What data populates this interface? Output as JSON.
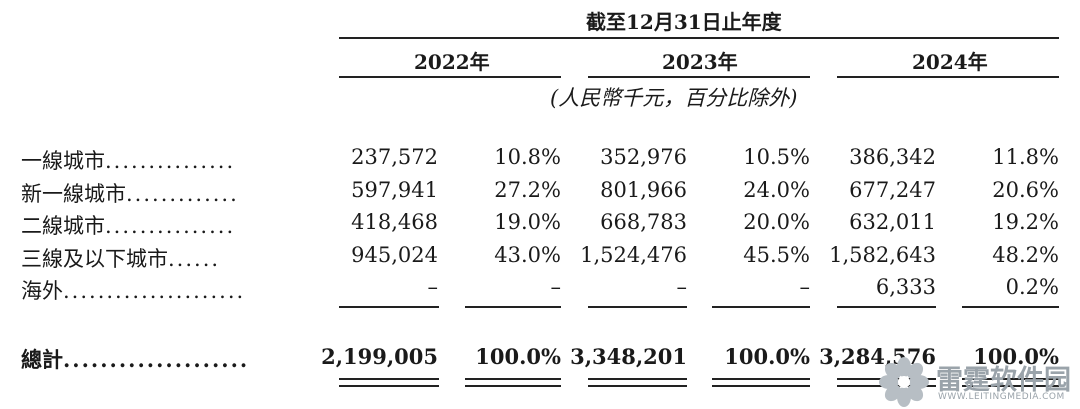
{
  "header": {
    "period": "截至12月31日止年度",
    "years": [
      "2022年",
      "2023年",
      "2024年"
    ],
    "unit": "(人民幣千元，百分比除外)"
  },
  "rows": [
    {
      "label": "一線城市",
      "dots": "...............",
      "values": [
        "237,572",
        "10.8%",
        "352,976",
        "10.5%",
        "386,342",
        "11.8%"
      ]
    },
    {
      "label": "新一線城市",
      "dots": ".............",
      "values": [
        "597,941",
        "27.2%",
        "801,966",
        "24.0%",
        "677,247",
        "20.6%"
      ]
    },
    {
      "label": "二線城市",
      "dots": "...............",
      "values": [
        "418,468",
        "19.0%",
        "668,783",
        "20.0%",
        "632,011",
        "19.2%"
      ]
    },
    {
      "label": "三線及以下城市",
      "dots": "......",
      "values": [
        "945,024",
        "43.0%",
        "1,524,476",
        "45.5%",
        "1,582,643",
        "48.2%"
      ]
    },
    {
      "label": "海外",
      "dots": ".....................",
      "values": [
        "–",
        "–",
        "–",
        "–",
        "6,333",
        "0.2%"
      ]
    }
  ],
  "total": {
    "label": "總計",
    "dots": "....................",
    "values": [
      "2,199,005",
      "100.0%",
      "3,348,201",
      "100.0%",
      "3,284,576",
      "100.0%"
    ]
  },
  "watermark": {
    "name": "雷霆软件园",
    "url": "WWW.LEITINGMEDIA.COM"
  }
}
